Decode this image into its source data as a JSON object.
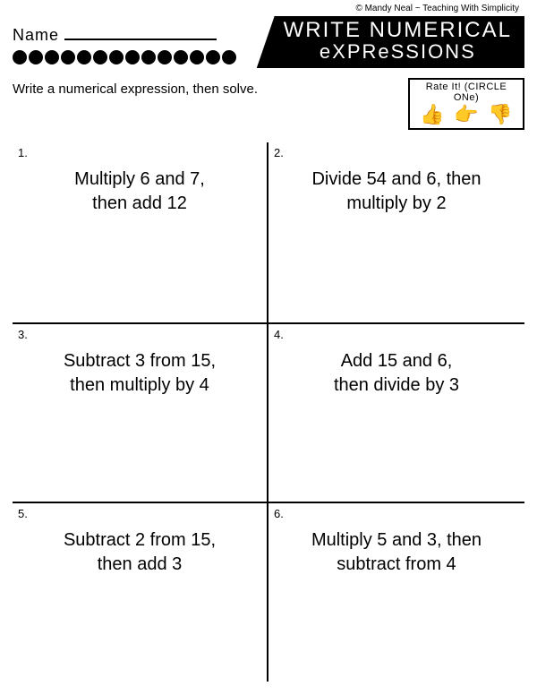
{
  "copyright": "© Mandy Neal ~ Teaching With Simplicity",
  "name_label": "Name",
  "title_line1": "WRITE NUMERICAL",
  "title_line2": "eXPReSSIONS",
  "instruction": "Write a numerical expression, then solve.",
  "rate_label": "Rate It! (CIRCLE ONe)",
  "thumbs": {
    "up": "👍",
    "side": "👉",
    "down": "👎"
  },
  "dot_count": 14,
  "problems": [
    {
      "num": "1.",
      "text": "Multiply 6 and 7,\nthen add 12"
    },
    {
      "num": "2.",
      "text": "Divide 54 and 6, then multiply by 2"
    },
    {
      "num": "3.",
      "text": "Subtract 3 from 15,\nthen multiply by 4"
    },
    {
      "num": "4.",
      "text": "Add 15 and 6,\nthen divide by 3"
    },
    {
      "num": "5.",
      "text": "Subtract 2 from 15,\nthen add 3"
    },
    {
      "num": "6.",
      "text": "Multiply 5 and 3, then subtract from 4"
    }
  ]
}
